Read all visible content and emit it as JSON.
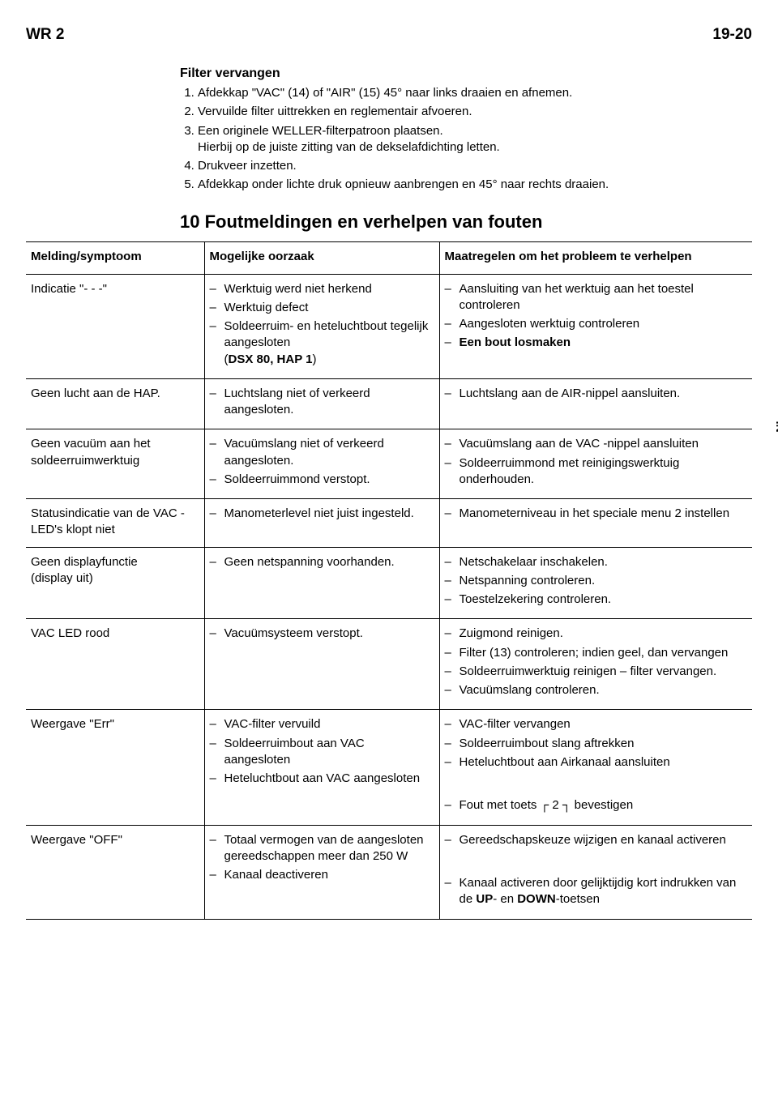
{
  "header": {
    "left": "WR 2",
    "right": "19-20"
  },
  "sideTab": "NL",
  "filterSection": {
    "title": "Filter vervangen",
    "steps": [
      "Afdekkap \"VAC\" (14) of \"AIR\" (15) 45° naar links draaien en afnemen.",
      "Vervuilde filter uittrekken en reglementair afvoeren.",
      "Een originele WELLER-filterpatroon plaatsen.",
      "Drukveer inzetten.",
      "Afdekkap onder lichte druk opnieuw aanbrengen en 45° naar rechts draaien."
    ],
    "note": "Hierbij op de juiste zitting van de dekselafdichting letten."
  },
  "errorTitle": "10 Foutmeldingen en verhelpen van fouten",
  "tableHead": {
    "symptom": "Melding/symptoom",
    "cause": "Mogelijke oorzaak",
    "fix": "Maatregelen om het probleem te verhelpen"
  },
  "rows": [
    {
      "symptom": "Indicatie \"- - -\"",
      "causes": [
        "Werktuig werd niet herkend",
        "Werktuig defect",
        "Soldeerruim- en heteluchtbout tegelijk aangesloten<br>(<b>DSX 80, HAP 1</b>)"
      ],
      "fixes": [
        "Aansluiting van het werktuig aan het toestel controleren",
        "Aangesloten werktuig controleren",
        "<b>Een bout losmaken</b>"
      ]
    },
    {
      "symptom": "Geen lucht aan de HAP.",
      "causes": [
        "Luchtslang niet of verkeerd aangesloten."
      ],
      "fixes": [
        "Luchtslang aan de AIR-nippel aansluiten."
      ]
    },
    {
      "symptom": "Geen vacuüm aan het soldeerruimwerktuig",
      "causes": [
        "Vacuümslang niet of verkeerd aangesloten.",
        "Soldeerruimmond verstopt."
      ],
      "fixes": [
        "Vacuümslang aan de VAC -nippel aansluiten",
        "Soldeerruimmond met reinigingswerktuig onderhouden."
      ]
    },
    {
      "symptom": "Statusindicatie van de VAC -LED's klopt niet",
      "causes": [
        "Manometerlevel niet juist ingesteld."
      ],
      "fixes": [
        "Manometerniveau in het speciale menu 2 instellen"
      ]
    },
    {
      "symptom": "Geen displayfunctie<br>(display uit)",
      "causes": [
        "Geen netspanning voorhanden."
      ],
      "fixes": [
        "Netschakelaar inschakelen.",
        "Netspanning controleren.",
        "Toestelzekering controleren."
      ]
    },
    {
      "symptom": "VAC LED rood",
      "causes": [
        "Vacuümsysteem verstopt."
      ],
      "fixes": [
        "Zuigmond reinigen.",
        "Filter (13) controleren; indien geel, dan vervangen",
        "Soldeerruimwerktuig reinigen – filter vervangen.",
        "Vacuümslang controleren."
      ]
    },
    {
      "symptom": "Weergave \"Err\"",
      "causes": [
        "VAC-filter vervuild",
        "Soldeerruimbout aan VAC aangesloten",
        "Heteluchtbout aan VAC aangesloten"
      ],
      "fixes": [
        "VAC-filter vervangen",
        "Soldeerruimbout slang aftrekken",
        "Heteluchtbout aan Airkanaal aansluiten",
        "",
        "Fout met toets <span class='key'>┌ 2 ┐</span> bevestigen"
      ]
    },
    {
      "symptom": "Weergave \"OFF\"",
      "causes": [
        "Totaal vermogen van de aangesloten gereedschappen meer dan 250 W",
        "Kanaal deactiveren"
      ],
      "fixes": [
        "Gereedschapskeuze wijzigen en kanaal activeren",
        "",
        "Kanaal activeren door gelijktijdig kort indrukken van de <b>UP</b>- en <b>DOWN</b>-toetsen"
      ]
    }
  ]
}
